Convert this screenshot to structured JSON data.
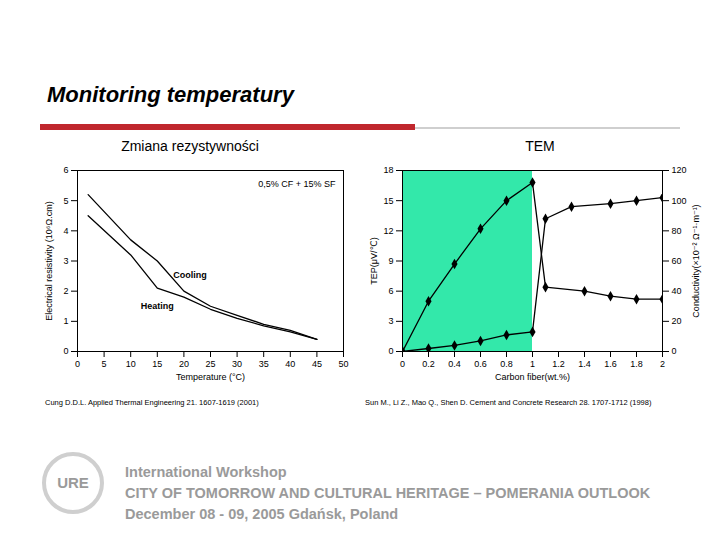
{
  "slide": {
    "title": "Monitoring temperatury",
    "logo": "URE",
    "footer": [
      "International Workshop",
      "CITY OF TOMORROW AND CULTURAL HERITAGE – POMERANIA OUTLOOK",
      "December 08 - 09, 2005 Gdańsk, Poland"
    ]
  },
  "chart_data": [
    {
      "type": "line",
      "title": "Zmiana rezystywności",
      "caption": "Cung D.D.L. Applied Thermal Engineering 21. 1607-1619 (2001)",
      "annotations": [
        "0,5% CF + 15% SF"
      ],
      "x_label": "Temperature (°C)",
      "y_label": "Electrical resistivity (10⁶Ω.cm)",
      "x": [
        2,
        10,
        15,
        20,
        25,
        30,
        35,
        40,
        45
      ],
      "xlim": [
        0,
        50
      ],
      "xticks": [
        0,
        5,
        10,
        15,
        20,
        25,
        30,
        35,
        40,
        45,
        50
      ],
      "ylim": [
        0,
        6
      ],
      "yticks": [
        0,
        1,
        2,
        3,
        4,
        5,
        6
      ],
      "series": [
        {
          "name": "Cooling",
          "color": "#000000",
          "values": [
            5.2,
            3.7,
            3.0,
            2.0,
            1.5,
            1.2,
            0.9,
            0.7,
            0.4
          ]
        },
        {
          "name": "Heating",
          "color": "#000000",
          "values": [
            4.5,
            3.2,
            2.1,
            1.8,
            1.4,
            1.1,
            0.85,
            0.65,
            0.4
          ]
        }
      ]
    },
    {
      "type": "line",
      "title": "TEM",
      "caption": "Sun M., Li Z., Mao Q., Shen D. Cement and Concrete Research 28. 1707-1712 (1998)",
      "x_label": "Carbon fiber(wt.%)",
      "y_label": "TEP(μV/℃)",
      "y2_label": "Conductivity(×10⁻² Ω⁻¹·m⁻¹)",
      "xlim": [
        0,
        2
      ],
      "xticks": [
        0,
        0.2,
        0.4,
        0.6,
        0.8,
        1,
        1.2,
        1.4,
        1.6,
        1.8,
        2
      ],
      "ylim": [
        0,
        18
      ],
      "yticks": [
        0,
        3,
        6,
        9,
        12,
        15,
        18
      ],
      "y2lim": [
        0,
        120
      ],
      "y2ticks": [
        0,
        20,
        40,
        60,
        80,
        100,
        120
      ],
      "highlight": {
        "x": [
          0,
          1
        ],
        "color": "#33e8aa"
      },
      "series": [
        {
          "color": "#000000",
          "marker": "diamond",
          "x": [
            0,
            0.2,
            0.4,
            0.6,
            0.8,
            1.0,
            1.1,
            1.4,
            1.6,
            1.8,
            2.0
          ],
          "values": [
            0,
            5,
            8.7,
            12.2,
            15,
            16.8,
            6.4,
            6.0,
            5.5,
            5.2,
            5.2
          ]
        },
        {
          "color": "#000000",
          "marker": "diamond",
          "axis": "y2",
          "x": [
            0,
            0.2,
            0.4,
            0.6,
            0.8,
            1.0,
            1.1,
            1.3,
            1.6,
            1.8,
            2.0
          ],
          "values": [
            0,
            2,
            4,
            7,
            11,
            13,
            88,
            96,
            98,
            100,
            102
          ]
        }
      ]
    }
  ]
}
